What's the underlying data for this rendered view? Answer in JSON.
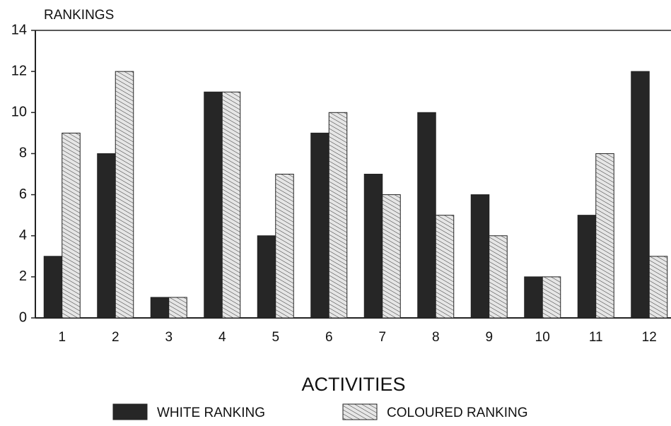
{
  "chart_data": {
    "type": "bar",
    "y_label": "RANKINGS",
    "x_label": "ACTIVITIES",
    "categories": [
      "1",
      "2",
      "3",
      "4",
      "5",
      "6",
      "7",
      "8",
      "9",
      "10",
      "11",
      "12"
    ],
    "series": [
      {
        "name": "WHITE RANKING",
        "color": "#262626",
        "values": [
          3,
          8,
          1,
          11,
          4,
          9,
          7,
          10,
          6,
          2,
          5,
          12
        ]
      },
      {
        "name": "COLOURED RANKING",
        "color": "#ffffff",
        "pattern": "diagonal-hatch",
        "values": [
          9,
          12,
          1,
          11,
          7,
          10,
          6,
          5,
          4,
          2,
          8,
          3
        ]
      }
    ],
    "ylim": [
      0,
      14
    ],
    "yticks": [
      0,
      2,
      4,
      6,
      8,
      10,
      12,
      14
    ],
    "legend": "bottom"
  }
}
